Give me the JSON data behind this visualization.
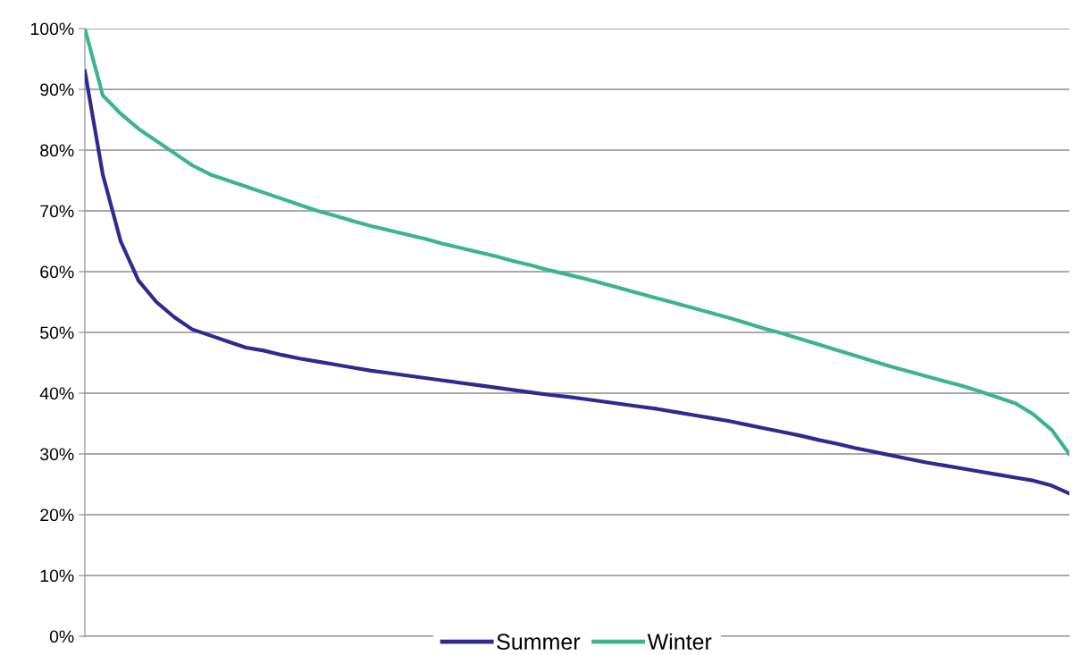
{
  "chart_data": {
    "type": "line",
    "categories": [
      null,
      null,
      null,
      null,
      null,
      null,
      null,
      null,
      null,
      null,
      null,
      null,
      null,
      null,
      null,
      null,
      null,
      null,
      null,
      null,
      null,
      null,
      null,
      null,
      null,
      null,
      null,
      null,
      null,
      null,
      null,
      null,
      null,
      null,
      null,
      null,
      null,
      null,
      null,
      null,
      null,
      null,
      null,
      null,
      null,
      null,
      null,
      null,
      null,
      null,
      null,
      null,
      null,
      null,
      null,
      null
    ],
    "series": [
      {
        "name": "Summer",
        "color": "#2e2a8f",
        "values": [
          93,
          76,
          65,
          58.5,
          55,
          52.5,
          50.5,
          49.5,
          48.5,
          47.5,
          47,
          46.3,
          45.7,
          45.2,
          44.7,
          44.2,
          43.7,
          43.3,
          42.9,
          42.5,
          42.1,
          41.7,
          41.3,
          40.9,
          40.5,
          40.1,
          39.7,
          39.4,
          39,
          38.6,
          38.2,
          37.8,
          37.4,
          36.9,
          36.4,
          35.9,
          35.4,
          34.8,
          34.2,
          33.6,
          33,
          32.3,
          31.7,
          31,
          30.4,
          29.8,
          29.2,
          28.6,
          28.1,
          27.6,
          27.1,
          26.6,
          26.1,
          25.6,
          24.8,
          23.5
        ]
      },
      {
        "name": "Winter",
        "color": "#3cb58c",
        "values": [
          100,
          89,
          86,
          83.5,
          81.5,
          79.5,
          77.5,
          76,
          75,
          74,
          73,
          72,
          71,
          70,
          69.2,
          68.3,
          67.5,
          66.8,
          66.1,
          65.4,
          64.6,
          63.9,
          63.2,
          62.5,
          61.7,
          61,
          60.2,
          59.5,
          58.8,
          58,
          57.2,
          56.4,
          55.6,
          54.8,
          54,
          53.2,
          52.4,
          51.5,
          50.6,
          49.8,
          48.9,
          48,
          47.1,
          46.2,
          45.3,
          44.4,
          43.6,
          42.8,
          42,
          41.2,
          40.3,
          39.3,
          38.3,
          36.5,
          34,
          30
        ]
      }
    ],
    "ylim": [
      0,
      100
    ],
    "yticks": [
      {
        "value": 0,
        "label": "0%"
      },
      {
        "value": 10,
        "label": "10%"
      },
      {
        "value": 20,
        "label": "20%"
      },
      {
        "value": 30,
        "label": "30%"
      },
      {
        "value": 40,
        "label": "40%"
      },
      {
        "value": 50,
        "label": "50%"
      },
      {
        "value": 60,
        "label": "60%"
      },
      {
        "value": 70,
        "label": "70%"
      },
      {
        "value": 80,
        "label": "80%"
      },
      {
        "value": 90,
        "label": "90%"
      },
      {
        "value": 100,
        "label": "100%"
      }
    ],
    "grid": "y",
    "legend": "bottom",
    "tick_labels": "y",
    "marker": "none",
    "line_style": "solid"
  }
}
